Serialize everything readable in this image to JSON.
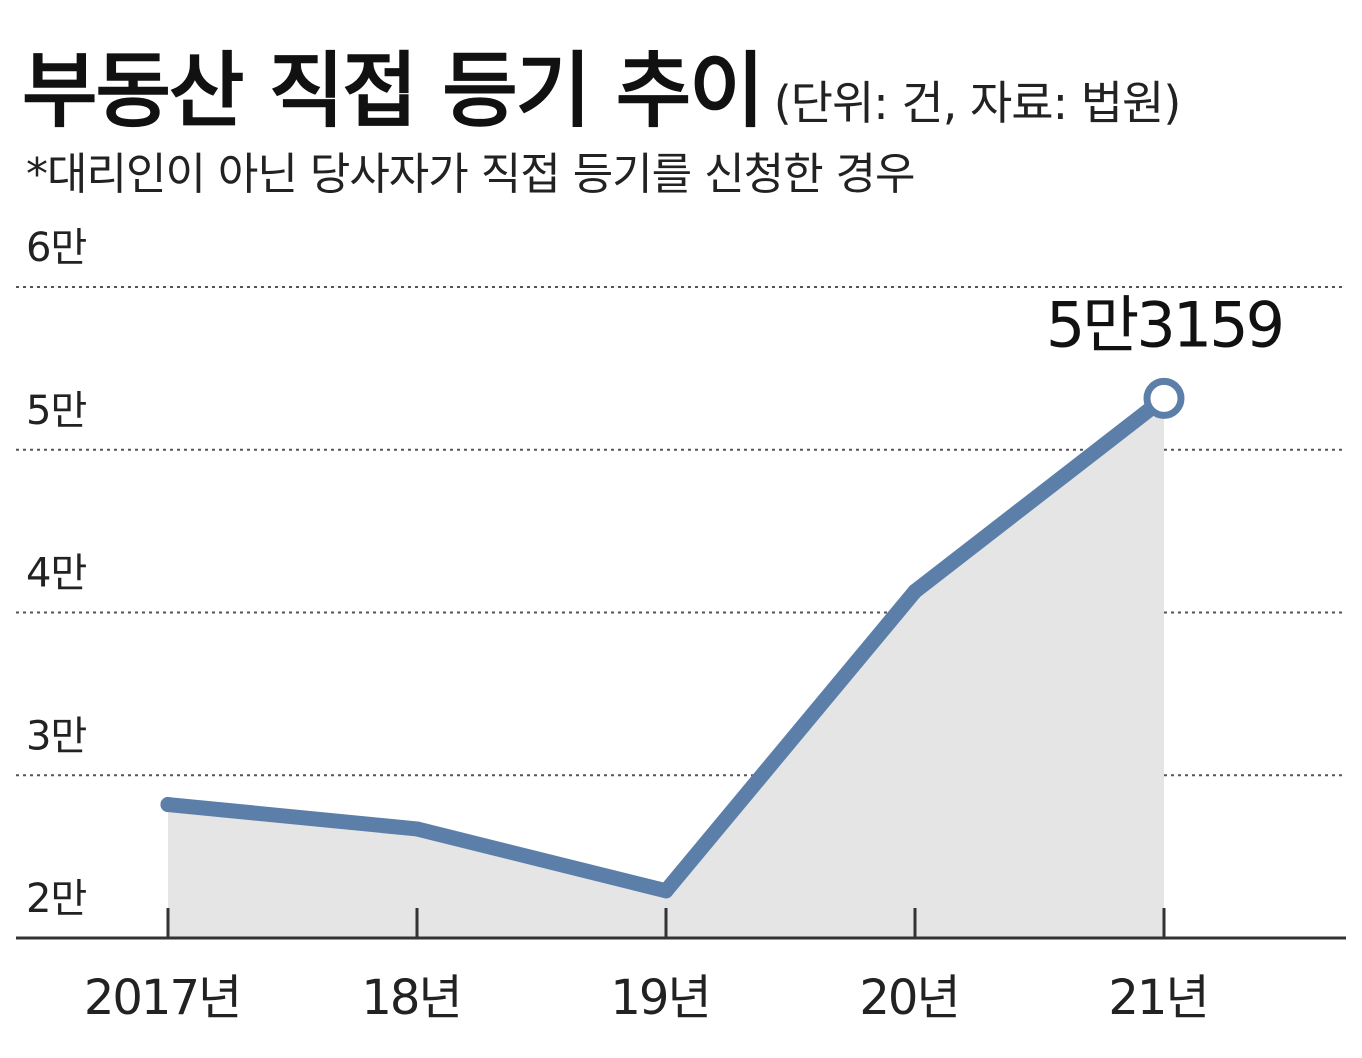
{
  "header": {
    "title": "부동산 직접 등기 추이",
    "unit_note": "(단위: 건, 자료: 법원)",
    "footnote": "*대리인이 아닌 당사자가 직접 등기를 신청한 경우"
  },
  "chart_data": {
    "type": "area",
    "title": "부동산 직접 등기 추이",
    "subtitle": "*대리인이 아닌 당사자가 직접 등기를 신청한 경우",
    "unit": "(단위: 건, 자료: 법원)",
    "categories": [
      "2017년",
      "18년",
      "19년",
      "20년",
      "21년"
    ],
    "values": [
      28200,
      26700,
      22900,
      41300,
      53159
    ],
    "ylim": [
      20000,
      60000
    ],
    "y_ticks": [
      {
        "value": 20000,
        "label": "2만"
      },
      {
        "value": 30000,
        "label": "3만"
      },
      {
        "value": 40000,
        "label": "4만"
      },
      {
        "value": 50000,
        "label": "5만"
      },
      {
        "value": 60000,
        "label": "6만"
      }
    ],
    "annotation": {
      "index": 4,
      "label": "5만3159"
    },
    "grid": "dotted horizontal",
    "colors": {
      "line": "#5b7fa8",
      "fill": "#e5e5e5",
      "grid": "#555555",
      "axis": "#333333"
    }
  }
}
